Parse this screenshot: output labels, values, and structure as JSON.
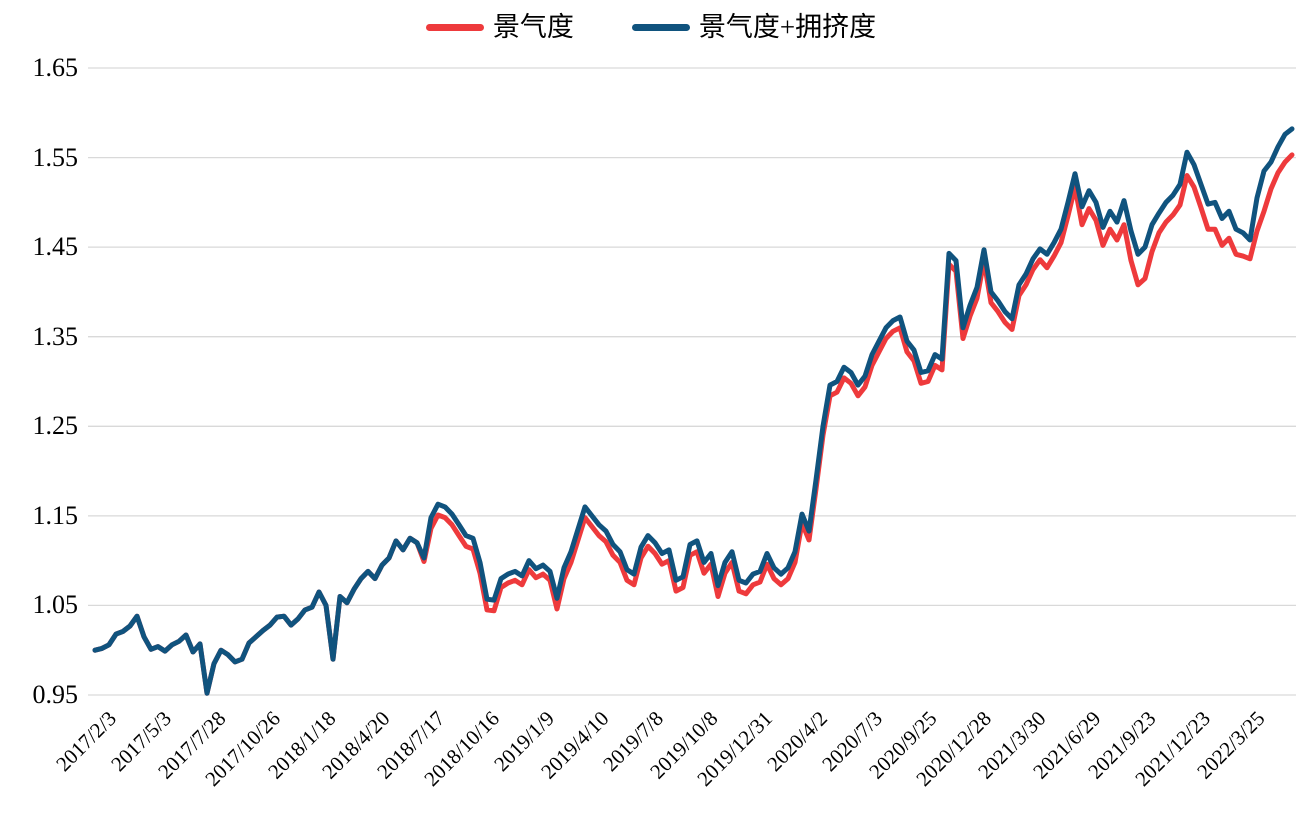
{
  "chart_data": {
    "type": "line",
    "title": "",
    "legend_position": "top",
    "grid": "horizontal",
    "colors": {
      "series_red": "#ee3a3c",
      "series_blue": "#10537e",
      "gridline": "#d9d9d9",
      "text": "#000000",
      "background": "#ffffff"
    },
    "legend": [
      {
        "label": "景气度",
        "color": "#ee3a3c"
      },
      {
        "label": "景气度+拥挤度",
        "color": "#10537e"
      }
    ],
    "y_axis": {
      "min": 0.95,
      "max": 1.65,
      "step": 0.1,
      "tick_labels": [
        "1.65",
        "1.55",
        "1.45",
        "1.35",
        "1.25",
        "1.15",
        "1.05",
        "0.95"
      ]
    },
    "x_axis": {
      "tick_labels": [
        "2017/2/3",
        "2017/5/3",
        "2017/7/28",
        "2017/10/26",
        "2018/1/18",
        "2018/4/20",
        "2018/7/17",
        "2018/10/16",
        "2019/1/9",
        "2019/4/10",
        "2019/7/8",
        "2019/10/8",
        "2019/12/31",
        "2020/4/2",
        "2020/7/3",
        "2020/9/25",
        "2020/12/28",
        "2021/3/30",
        "2021/6/29",
        "2021/9/23",
        "2021/12/23",
        "2022/3/25"
      ]
    },
    "series": [
      {
        "name": "景气度",
        "color": "#ee3a3c",
        "values": [
          1.0,
          1.002,
          1.006,
          1.018,
          1.021,
          1.027,
          1.038,
          1.015,
          1.001,
          1.004,
          0.999,
          1.006,
          1.01,
          1.017,
          0.998,
          1.007,
          0.952,
          0.985,
          1.0,
          0.995,
          0.987,
          0.99,
          1.008,
          1.015,
          1.022,
          1.028,
          1.037,
          1.038,
          1.028,
          1.035,
          1.045,
          1.048,
          1.065,
          1.05,
          0.99,
          1.06,
          1.053,
          1.068,
          1.08,
          1.088,
          1.08,
          1.095,
          1.103,
          1.122,
          1.112,
          1.125,
          1.12,
          1.099,
          1.136,
          1.151,
          1.148,
          1.14,
          1.128,
          1.116,
          1.113,
          1.086,
          1.045,
          1.044,
          1.07,
          1.075,
          1.078,
          1.073,
          1.09,
          1.081,
          1.085,
          1.078,
          1.046,
          1.08,
          1.098,
          1.123,
          1.148,
          1.138,
          1.128,
          1.121,
          1.106,
          1.098,
          1.078,
          1.073,
          1.103,
          1.116,
          1.108,
          1.096,
          1.1,
          1.066,
          1.07,
          1.106,
          1.11,
          1.086,
          1.096,
          1.06,
          1.086,
          1.098,
          1.066,
          1.063,
          1.073,
          1.076,
          1.096,
          1.08,
          1.073,
          1.08,
          1.098,
          1.142,
          1.123,
          1.18,
          1.24,
          1.284,
          1.288,
          1.304,
          1.298,
          1.284,
          1.294,
          1.318,
          1.333,
          1.348,
          1.356,
          1.36,
          1.333,
          1.323,
          1.298,
          1.3,
          1.318,
          1.313,
          1.431,
          1.423,
          1.348,
          1.373,
          1.393,
          1.435,
          1.388,
          1.378,
          1.366,
          1.358,
          1.396,
          1.408,
          1.425,
          1.436,
          1.427,
          1.44,
          1.455,
          1.485,
          1.517,
          1.475,
          1.493,
          1.48,
          1.452,
          1.47,
          1.458,
          1.475,
          1.435,
          1.408,
          1.415,
          1.445,
          1.466,
          1.478,
          1.486,
          1.497,
          1.53,
          1.517,
          1.494,
          1.47,
          1.47,
          1.452,
          1.46,
          1.442,
          1.44,
          1.437,
          1.468,
          1.49,
          1.515,
          1.533,
          1.545,
          1.553
        ]
      },
      {
        "name": "景气度+拥挤度",
        "color": "#10537e",
        "values": [
          1.0,
          1.002,
          1.006,
          1.018,
          1.021,
          1.027,
          1.038,
          1.015,
          1.001,
          1.004,
          0.999,
          1.006,
          1.01,
          1.017,
          0.998,
          1.007,
          0.952,
          0.985,
          1.0,
          0.995,
          0.987,
          0.99,
          1.008,
          1.015,
          1.022,
          1.028,
          1.037,
          1.038,
          1.028,
          1.035,
          1.045,
          1.048,
          1.065,
          1.05,
          0.99,
          1.06,
          1.053,
          1.068,
          1.08,
          1.088,
          1.08,
          1.095,
          1.103,
          1.122,
          1.112,
          1.125,
          1.12,
          1.103,
          1.148,
          1.163,
          1.16,
          1.152,
          1.14,
          1.128,
          1.125,
          1.098,
          1.057,
          1.056,
          1.08,
          1.085,
          1.088,
          1.083,
          1.1,
          1.091,
          1.095,
          1.088,
          1.058,
          1.092,
          1.11,
          1.135,
          1.16,
          1.15,
          1.14,
          1.133,
          1.118,
          1.11,
          1.09,
          1.085,
          1.115,
          1.128,
          1.12,
          1.108,
          1.112,
          1.078,
          1.082,
          1.118,
          1.122,
          1.098,
          1.108,
          1.072,
          1.098,
          1.11,
          1.078,
          1.075,
          1.085,
          1.088,
          1.108,
          1.092,
          1.085,
          1.092,
          1.11,
          1.152,
          1.133,
          1.19,
          1.25,
          1.296,
          1.3,
          1.316,
          1.31,
          1.296,
          1.306,
          1.33,
          1.345,
          1.36,
          1.368,
          1.372,
          1.345,
          1.335,
          1.31,
          1.312,
          1.33,
          1.325,
          1.443,
          1.435,
          1.36,
          1.385,
          1.405,
          1.447,
          1.4,
          1.39,
          1.378,
          1.37,
          1.408,
          1.42,
          1.437,
          1.448,
          1.442,
          1.455,
          1.47,
          1.5,
          1.532,
          1.495,
          1.513,
          1.5,
          1.472,
          1.49,
          1.478,
          1.502,
          1.468,
          1.442,
          1.45,
          1.475,
          1.488,
          1.5,
          1.508,
          1.52,
          1.556,
          1.542,
          1.52,
          1.498,
          1.5,
          1.482,
          1.49,
          1.47,
          1.466,
          1.458,
          1.505,
          1.535,
          1.545,
          1.562,
          1.576,
          1.582
        ]
      }
    ]
  }
}
